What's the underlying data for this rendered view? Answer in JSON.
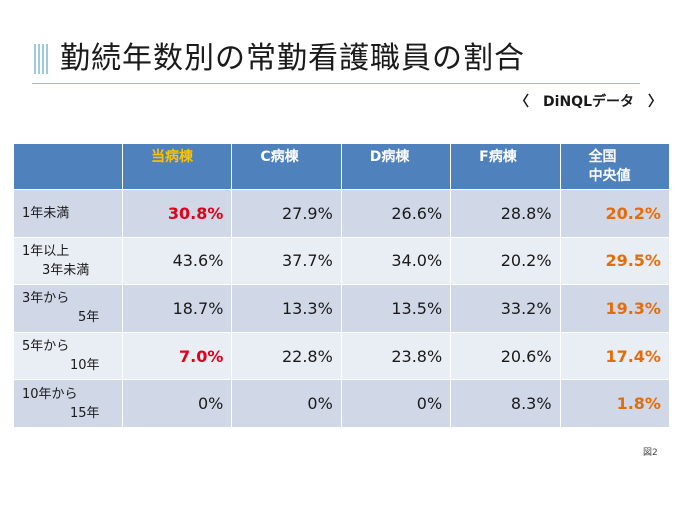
{
  "title": "勤続年数別の常勤看護職員の割合",
  "source": "〈　DiNQLデータ　〉",
  "table": {
    "headers": [
      "",
      "当病棟",
      "C病棟",
      "D病棟",
      "F病棟",
      "全国\n中央値"
    ],
    "header_national_line1": "全国",
    "header_national_line2": "中央値",
    "rows": [
      {
        "label1": "1年未満",
        "label2": "",
        "values": [
          "30.8%",
          "27.9%",
          "26.6%",
          "28.8%",
          "20.2%"
        ]
      },
      {
        "label1": "1年以上",
        "label2": "3年未満",
        "values": [
          "43.6%",
          "37.7%",
          "34.0%",
          "20.2%",
          "29.5%"
        ]
      },
      {
        "label1": "3年から",
        "label2": "5年",
        "values": [
          "18.7%",
          "13.3%",
          "13.5%",
          "33.2%",
          "19.3%"
        ]
      },
      {
        "label1": "5年から",
        "label2": "10年",
        "values": [
          "7.0%",
          "22.8%",
          "23.8%",
          "20.6%",
          "17.4%"
        ]
      },
      {
        "label1": "10年から",
        "label2": "15年",
        "values": [
          "0%",
          "0%",
          "0%",
          "8.3%",
          "1.8%"
        ]
      }
    ]
  },
  "figure_label": "図2",
  "colors": {
    "header_bg": "#4f81bd",
    "own_ward_header": "#ffc000",
    "highlight_red": "#e0001a",
    "national_orange": "#e46c0a",
    "row_dark": "#d0d8e8",
    "row_light": "#e9edf4"
  }
}
